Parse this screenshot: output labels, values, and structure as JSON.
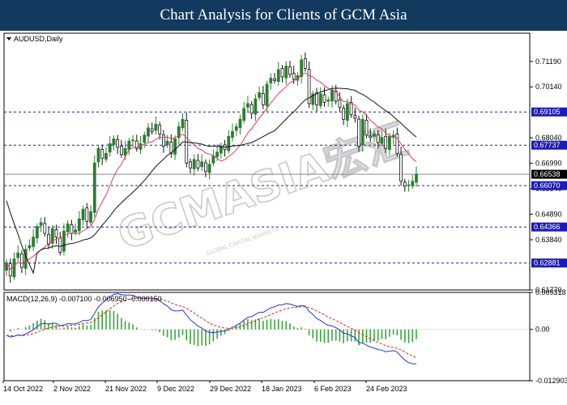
{
  "header": {
    "title": "Chart Analysis for Clients of GCM Asia"
  },
  "watermark": {
    "text": "GCMASIA宏汇",
    "sub": "GLOBAL CAPITAL MARKETS"
  },
  "colors": {
    "background": "#ffffff",
    "header_bg": "#123a5e",
    "up_candle": "#2e7d32",
    "down_candle": "#111111",
    "ma_fast": "#e0405a",
    "ma_slow": "#111111",
    "level_line": "#1c1cb4",
    "level_tag": "#1c1cb4",
    "current_price_tag": "#000000",
    "macd_line": "#2233dd",
    "signal_line": "#dd2222",
    "histogram": "#3aa63a"
  },
  "chart_data": [
    {
      "type": "candlestick",
      "symbol_label": "AUDUSD,Daily",
      "x_axis_labels": [
        "14 Oct 2022",
        "2 Nov 2022",
        "21 Nov 2022",
        "9 Dec 2022",
        "29 Dec 2022",
        "18 Jan 2023",
        "6 Feb 2023",
        "24 Feb 2023"
      ],
      "y_ticks": [
        "0.71190",
        "0.70140",
        "0.68040",
        "0.66990",
        "0.65940",
        "0.64890",
        "0.63840",
        "0.61770"
      ],
      "ylim": [
        0.6177,
        0.7235
      ],
      "current_price": "0.66538",
      "horizontal_levels": [
        "0.69105",
        "0.67737",
        "0.66070",
        "0.64366",
        "0.62881"
      ],
      "closes": [
        0.629,
        0.6235,
        0.6305,
        0.633,
        0.627,
        0.6345,
        0.636,
        0.6395,
        0.6438,
        0.6455,
        0.641,
        0.6365,
        0.643,
        0.6395,
        0.6332,
        0.642,
        0.645,
        0.641,
        0.6425,
        0.647,
        0.651,
        0.646,
        0.65,
        0.67,
        0.676,
        0.672,
        0.674,
        0.678,
        0.68,
        0.6765,
        0.6735,
        0.676,
        0.679,
        0.6795,
        0.676,
        0.678,
        0.6815,
        0.6845,
        0.683,
        0.686,
        0.682,
        0.677,
        0.679,
        0.674,
        0.68,
        0.685,
        0.688,
        0.67,
        0.668,
        0.6715,
        0.668,
        0.6705,
        0.6665,
        0.6695,
        0.673,
        0.6745,
        0.677,
        0.6755,
        0.681,
        0.683,
        0.685,
        0.688,
        0.6925,
        0.6945,
        0.6905,
        0.6965,
        0.699,
        0.694,
        0.7025,
        0.705,
        0.704,
        0.7085,
        0.7055,
        0.71,
        0.7065,
        0.7045,
        0.706,
        0.7125,
        0.709,
        0.6945,
        0.6985,
        0.694,
        0.6985,
        0.695,
        0.696,
        0.7,
        0.6955,
        0.693,
        0.688,
        0.6945,
        0.69,
        0.6885,
        0.677,
        0.688,
        0.6815,
        0.6805,
        0.682,
        0.6785,
        0.6805,
        0.676,
        0.681,
        0.6815,
        0.674,
        0.6625,
        0.6605,
        0.661,
        0.6625,
        0.6654
      ]
    },
    {
      "type": "macd",
      "label": "MACD(12,26,9) -0.007100 -0.006950 -0.000150",
      "y_ticks": [
        "0.009318",
        "0.00",
        "-0.012903"
      ],
      "ylim": [
        -0.012903,
        0.009318
      ]
    }
  ]
}
